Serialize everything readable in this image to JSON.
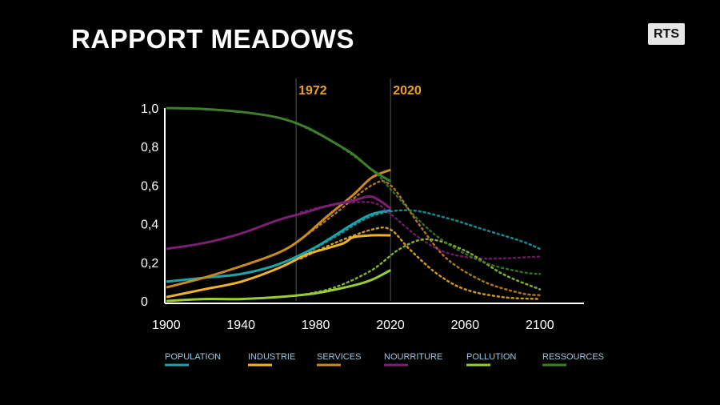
{
  "header": {
    "title": "RAPPORT MEADOWS",
    "logo": "RTS"
  },
  "chart_data": {
    "type": "line",
    "title": "RAPPORT MEADOWS",
    "xlabel": "",
    "ylabel": "",
    "xlim": [
      1900,
      2100
    ],
    "ylim": [
      0,
      1.0
    ],
    "x_ticks": [
      "1900",
      "1940",
      "1980",
      "2020",
      "2060",
      "2100"
    ],
    "y_ticks": [
      "0",
      "0,2",
      "0,4",
      "0,6",
      "0,8",
      "1,0"
    ],
    "grid": false,
    "legend_position": "bottom",
    "annotations": [
      {
        "label": "1972",
        "x": 1972
      },
      {
        "label": "2020",
        "x": 2020
      }
    ],
    "series": [
      {
        "name": "POPULATION",
        "color": "#1aa3a8",
        "observed": [
          [
            1900,
            0.1
          ],
          [
            1920,
            0.12
          ],
          [
            1940,
            0.14
          ],
          [
            1960,
            0.19
          ],
          [
            1980,
            0.28
          ],
          [
            2000,
            0.4
          ],
          [
            2010,
            0.45
          ],
          [
            2020,
            0.47
          ]
        ],
        "projected": [
          [
            1972,
            0.23
          ],
          [
            1990,
            0.33
          ],
          [
            2010,
            0.44
          ],
          [
            2030,
            0.47
          ],
          [
            2050,
            0.43
          ],
          [
            2070,
            0.37
          ],
          [
            2090,
            0.31
          ],
          [
            2100,
            0.27
          ]
        ]
      },
      {
        "name": "INDUSTRIE",
        "color": "#f0b323",
        "observed": [
          [
            1900,
            0.02
          ],
          [
            1920,
            0.06
          ],
          [
            1940,
            0.1
          ],
          [
            1960,
            0.17
          ],
          [
            1975,
            0.24
          ],
          [
            1985,
            0.27
          ],
          [
            1995,
            0.3
          ],
          [
            2000,
            0.33
          ],
          [
            2010,
            0.34
          ],
          [
            2020,
            0.34
          ]
        ],
        "projected": [
          [
            1972,
            0.22
          ],
          [
            1990,
            0.3
          ],
          [
            2010,
            0.37
          ],
          [
            2020,
            0.37
          ],
          [
            2030,
            0.27
          ],
          [
            2045,
            0.14
          ],
          [
            2060,
            0.06
          ],
          [
            2080,
            0.02
          ],
          [
            2100,
            0.01
          ]
        ]
      },
      {
        "name": "SERVICES",
        "color": "#c98a1f",
        "observed": [
          [
            1900,
            0.07
          ],
          [
            1920,
            0.12
          ],
          [
            1940,
            0.18
          ],
          [
            1960,
            0.25
          ],
          [
            1972,
            0.32
          ],
          [
            1985,
            0.43
          ],
          [
            2000,
            0.55
          ],
          [
            2010,
            0.64
          ],
          [
            2020,
            0.68
          ]
        ],
        "projected": [
          [
            1972,
            0.32
          ],
          [
            1990,
            0.45
          ],
          [
            2010,
            0.6
          ],
          [
            2020,
            0.6
          ],
          [
            2035,
            0.4
          ],
          [
            2050,
            0.22
          ],
          [
            2070,
            0.1
          ],
          [
            2090,
            0.04
          ],
          [
            2100,
            0.03
          ]
        ]
      },
      {
        "name": "NOURRITURE",
        "color": "#7c1f73",
        "observed": [
          [
            1900,
            0.27
          ],
          [
            1920,
            0.3
          ],
          [
            1940,
            0.35
          ],
          [
            1960,
            0.42
          ],
          [
            1975,
            0.46
          ],
          [
            1985,
            0.49
          ],
          [
            2000,
            0.52
          ],
          [
            2010,
            0.54
          ],
          [
            2020,
            0.48
          ]
        ],
        "projected": [
          [
            1972,
            0.46
          ],
          [
            1990,
            0.5
          ],
          [
            2010,
            0.51
          ],
          [
            2020,
            0.45
          ],
          [
            2035,
            0.33
          ],
          [
            2050,
            0.25
          ],
          [
            2070,
            0.22
          ],
          [
            2100,
            0.23
          ]
        ]
      },
      {
        "name": "POLLUTION",
        "color": "#9acd32",
        "observed": [
          [
            1900,
            0.0
          ],
          [
            1920,
            0.01
          ],
          [
            1940,
            0.01
          ],
          [
            1960,
            0.02
          ],
          [
            1980,
            0.04
          ],
          [
            2000,
            0.08
          ],
          [
            2010,
            0.11
          ],
          [
            2020,
            0.16
          ]
        ],
        "projected": [
          [
            1972,
            0.03
          ],
          [
            1990,
            0.07
          ],
          [
            2010,
            0.16
          ],
          [
            2025,
            0.27
          ],
          [
            2040,
            0.32
          ],
          [
            2060,
            0.26
          ],
          [
            2080,
            0.14
          ],
          [
            2100,
            0.06
          ]
        ]
      },
      {
        "name": "RESSOURCES",
        "color": "#3f7f2a",
        "observed": [
          [
            1900,
            1.0
          ],
          [
            1920,
            0.995
          ],
          [
            1940,
            0.98
          ],
          [
            1960,
            0.95
          ],
          [
            1975,
            0.9
          ],
          [
            1990,
            0.82
          ],
          [
            2000,
            0.76
          ],
          [
            2010,
            0.68
          ],
          [
            2020,
            0.62
          ]
        ],
        "projected": [
          [
            1972,
            0.91
          ],
          [
            1990,
            0.82
          ],
          [
            2010,
            0.68
          ],
          [
            2020,
            0.58
          ],
          [
            2035,
            0.42
          ],
          [
            2050,
            0.3
          ],
          [
            2070,
            0.2
          ],
          [
            2090,
            0.15
          ],
          [
            2100,
            0.14
          ]
        ]
      }
    ]
  }
}
